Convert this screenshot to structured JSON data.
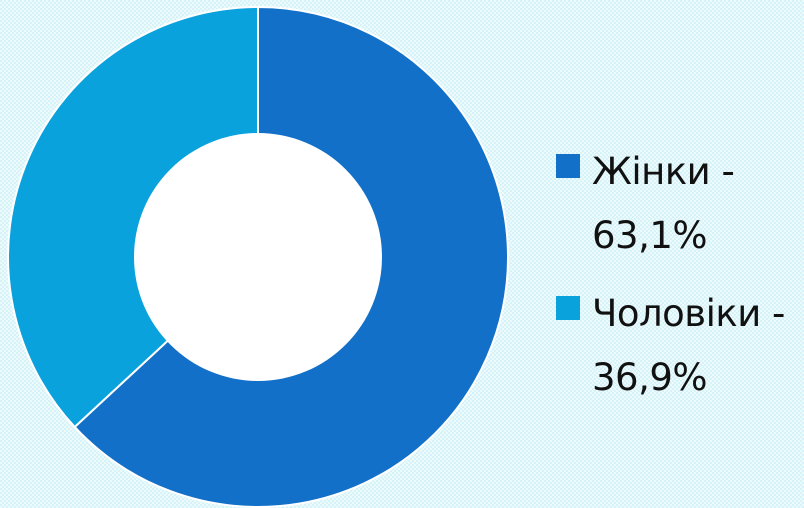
{
  "chart_data": {
    "type": "pie",
    "donut": true,
    "categories": [
      "Жінки",
      "Чоловіки"
    ],
    "values": [
      63.1,
      36.9
    ],
    "unit": "%",
    "legend_placement": "right",
    "slices": [
      {
        "label": "Жінки",
        "value": 63.1,
        "color": "#1270c9"
      },
      {
        "label": "Чоловіки",
        "value": 36.9,
        "color": "#0aa2dc"
      }
    ]
  },
  "legend": {
    "items": [
      {
        "line1": "Жінки -",
        "line2": "63,1%",
        "color": "#1270c9"
      },
      {
        "line1": "Чоловіки -",
        "line2": "36,9%",
        "color": "#0aa2dc"
      }
    ]
  },
  "colors": {
    "background": "#d6f3f9",
    "hole": "#ffffff",
    "divider": "#ffffff"
  }
}
